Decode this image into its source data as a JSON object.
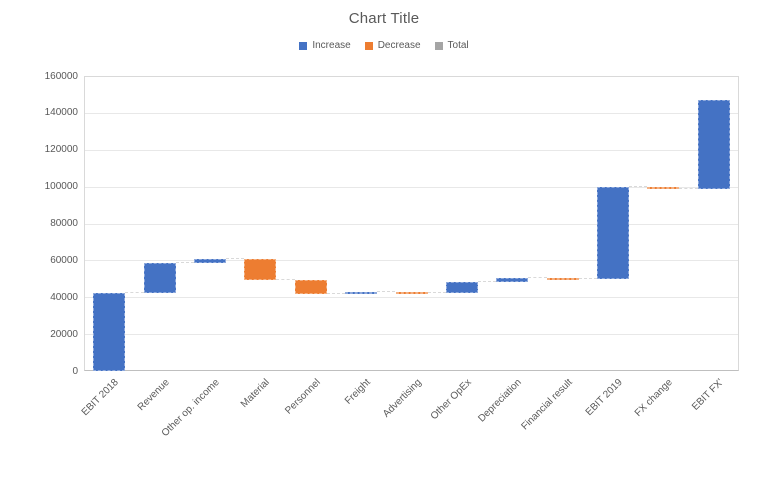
{
  "title": "Chart Title",
  "legend": [
    {
      "label": "Increase",
      "color": "#4472C4"
    },
    {
      "label": "Decrease",
      "color": "#ED7D31"
    },
    {
      "label": "Total",
      "color": "#A5A5A5"
    }
  ],
  "chart_data": {
    "type": "bar",
    "subtype": "waterfall",
    "title": "Chart Title",
    "xlabel": "",
    "ylabel": "",
    "ylim": [
      0,
      160000
    ],
    "y_tick_step": 20000,
    "y_tick_labels": [
      "0",
      "20000",
      "40000",
      "60000",
      "80000",
      "100000",
      "120000",
      "140000",
      "160000"
    ],
    "grid": true,
    "legend_position": "top",
    "categories": [
      "EBIT 2018",
      "Revenue",
      "Other op. income",
      "Material",
      "Personnel",
      "Freight",
      "Advertising",
      "Other OpEx",
      "Depreciation",
      "Financial result",
      "EBIT 2019",
      "FX change",
      "EBIT FX'"
    ],
    "steps": [
      {
        "label": "EBIT 2018",
        "start": 0,
        "end": 42500,
        "type": "increase"
      },
      {
        "label": "Revenue",
        "start": 42500,
        "end": 58800,
        "type": "increase"
      },
      {
        "label": "Other op. income",
        "start": 58800,
        "end": 60900,
        "type": "increase"
      },
      {
        "label": "Material",
        "start": 60900,
        "end": 49500,
        "type": "decrease"
      },
      {
        "label": "Personnel",
        "start": 49500,
        "end": 41800,
        "type": "decrease"
      },
      {
        "label": "Freight",
        "start": 41800,
        "end": 42900,
        "type": "increase"
      },
      {
        "label": "Advertising",
        "start": 42900,
        "end": 42500,
        "type": "decrease"
      },
      {
        "label": "Other OpEx",
        "start": 42500,
        "end": 48300,
        "type": "increase"
      },
      {
        "label": "Depreciation",
        "start": 48300,
        "end": 50300,
        "type": "increase"
      },
      {
        "label": "Financial result",
        "start": 50300,
        "end": 49900,
        "type": "decrease"
      },
      {
        "label": "EBIT 2019",
        "start": 49900,
        "end": 100000,
        "type": "increase"
      },
      {
        "label": "FX change",
        "start": 100000,
        "end": 99000,
        "type": "decrease"
      },
      {
        "label": "EBIT FX'",
        "start": 99000,
        "end": 147000,
        "type": "increase"
      }
    ],
    "colors": {
      "increase": "#4472C4",
      "decrease": "#ED7D31",
      "total": "#A5A5A5"
    }
  }
}
